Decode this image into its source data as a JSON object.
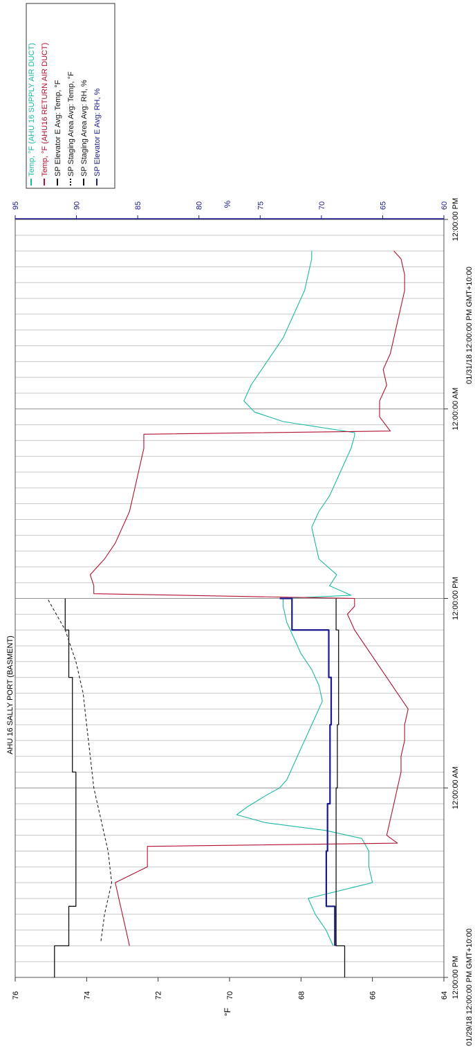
{
  "chart_data": {
    "type": "line",
    "title": "AHU 16 SALLY PORT (BASMENT)",
    "x_label_start": "01/29/18 12:00:00 PM GMT+10:00",
    "x_label_end": "01/31/18 12:00:00 PM GMT+10:00",
    "x_ticks": [
      "12:00:00 PM",
      "12:00:00 AM",
      "12:00:00 PM",
      "12:00:00 AM",
      "12:00:00 PM"
    ],
    "xlim_hours": [
      0,
      48
    ],
    "left_axis": {
      "label": "°F",
      "ylim": [
        64,
        76
      ],
      "ticks": [
        "64",
        "66",
        "68",
        "70",
        "72",
        "74",
        "76"
      ]
    },
    "right_axis": {
      "label": "%",
      "ylim": [
        60,
        95
      ],
      "ticks": [
        "60",
        "65",
        "70",
        "75",
        "80",
        "85",
        "90",
        "95"
      ]
    },
    "legend": {
      "placement": "top-left",
      "items": [
        {
          "label": "Temp, °F (AHU 16 SUPPLY AIR DUCT)",
          "color": "#19b8a0",
          "style": "solid"
        },
        {
          "label": "Temp, °F (AHU16 RETURN AIR DUCT)",
          "color": "#b01030",
          "style": "solid"
        },
        {
          "label": "SP Elevator E Avg: Temp, °F",
          "color": "#111111",
          "style": "solid"
        },
        {
          "label": "SP Staging Area Avg: Temp, °F",
          "color": "#111111",
          "style": "dotted"
        },
        {
          "label": "SP Staging Area Avg: RH, %",
          "color": "#111111",
          "style": "solid"
        },
        {
          "label": "SP Elevator E Avg: RH, %",
          "color": "#1a1a8c",
          "style": "solid"
        }
      ]
    },
    "series": [
      {
        "name": "Temp, °F (AHU 16 SUPPLY AIR DUCT)",
        "axis": "left",
        "color": "#19b8a0",
        "width": 1.1,
        "dash": "",
        "x": [
          2.0,
          3.0,
          4.0,
          5.0,
          6.0,
          7.0,
          8.0,
          8.8,
          9.3,
          9.8,
          10.3,
          10.8,
          11.5,
          12.0,
          12.5,
          13.5,
          14.5,
          15.5,
          16.5,
          17.5,
          18.5,
          19.5,
          20.5,
          21.5,
          22.5,
          23.5,
          24.0,
          24.2,
          24.8,
          25.5,
          26.5,
          27.5,
          28.5,
          29.5,
          30.5,
          31.5,
          32.5,
          33.5,
          34.3,
          34.5,
          35.2,
          35.8,
          36.5,
          37.5,
          38.5,
          39.5,
          40.5,
          41.5,
          42.5,
          43.5,
          44.5,
          45.5,
          46.0
        ],
        "values": [
          67.1,
          67.3,
          67.6,
          67.8,
          66.0,
          66.1,
          66.1,
          66.3,
          67.3,
          69.0,
          69.8,
          69.5,
          69.0,
          68.6,
          68.4,
          68.2,
          68.0,
          67.8,
          67.6,
          67.4,
          67.5,
          67.7,
          68.0,
          68.2,
          68.4,
          68.5,
          68.5,
          66.6,
          67.2,
          67.0,
          67.5,
          67.6,
          67.7,
          67.5,
          67.2,
          67.0,
          66.8,
          66.6,
          66.5,
          66.5,
          68.5,
          69.3,
          69.6,
          69.4,
          69.1,
          68.8,
          68.5,
          68.3,
          68.1,
          67.9,
          67.8,
          67.7,
          67.7
        ]
      },
      {
        "name": "Temp, °F (AHU16 RETURN AIR DUCT)",
        "axis": "left",
        "color": "#b01030",
        "width": 1.1,
        "dash": "",
        "x": [
          2.0,
          3.0,
          4.0,
          5.0,
          6.0,
          7.0,
          8.3,
          8.5,
          9.0,
          10.0,
          11.0,
          12.0,
          13.0,
          14.0,
          15.0,
          16.0,
          17.0,
          18.0,
          19.0,
          20.0,
          21.0,
          22.0,
          23.0,
          23.5,
          24.0,
          24.3,
          24.8,
          25.5,
          26.5,
          27.5,
          28.5,
          29.5,
          30.5,
          31.5,
          32.5,
          33.5,
          34.4,
          34.6,
          35.5,
          36.5,
          37.5,
          38.5,
          39.5,
          40.5,
          41.5,
          42.5,
          43.5,
          44.5,
          45.5,
          46.0
        ],
        "values": [
          72.8,
          72.9,
          73.0,
          73.1,
          73.2,
          72.3,
          72.3,
          65.3,
          65.6,
          65.5,
          65.4,
          65.3,
          65.2,
          65.2,
          65.1,
          65.1,
          65.0,
          65.3,
          65.6,
          65.9,
          66.2,
          66.5,
          66.7,
          66.5,
          66.5,
          73.8,
          73.8,
          73.9,
          73.5,
          73.2,
          73.0,
          72.8,
          72.7,
          72.6,
          72.5,
          72.4,
          72.4,
          65.5,
          65.8,
          65.8,
          65.6,
          65.7,
          65.5,
          65.4,
          65.3,
          65.2,
          65.1,
          65.1,
          65.2,
          65.4
        ]
      },
      {
        "name": "SP Elevator E Avg: Temp, °F",
        "axis": "left",
        "color": "#111111",
        "width": 1.3,
        "dash": "",
        "x": [
          0.0,
          2.0,
          2.0,
          4.5,
          4.5,
          8.0,
          8.0,
          13.0,
          13.0,
          19.0,
          19.0,
          22.0,
          22.0,
          24.0
        ],
        "values": [
          74.9,
          74.9,
          74.5,
          74.5,
          74.3,
          74.3,
          74.3,
          74.3,
          74.4,
          74.4,
          74.5,
          74.5,
          74.6,
          74.6
        ]
      },
      {
        "name": "SP Staging Area Avg: Temp, °F",
        "axis": "left",
        "color": "#222222",
        "width": 1.1,
        "dash": "4,3",
        "x": [
          2.3,
          4.0,
          6.0,
          8.0,
          10.0,
          12.0,
          14.0,
          16.0,
          18.0,
          20.0,
          22.0,
          24.0
        ],
        "values": [
          73.6,
          73.5,
          73.3,
          73.4,
          73.6,
          73.8,
          73.9,
          74.0,
          74.1,
          74.3,
          74.6,
          75.1
        ]
      },
      {
        "name": "SP Staging Area Avg: RH, %",
        "axis": "right",
        "color": "#111111",
        "width": 1.3,
        "dash": "",
        "x": [
          0.0,
          2.0,
          2.0,
          12.0,
          12.0,
          16.0,
          16.0,
          22.0,
          22.0,
          24.0
        ],
        "values": [
          68.1,
          68.1,
          68.8,
          68.8,
          68.7,
          68.7,
          68.6,
          68.6,
          68.8,
          68.8
        ]
      },
      {
        "name": "SP Elevator E Avg: RH, %",
        "axis": "right",
        "color": "#1a1a8c",
        "width": 2.2,
        "dash": "",
        "x": [
          2.0,
          4.5,
          4.5,
          8.0,
          8.0,
          11.0,
          11.0,
          16.0,
          16.0,
          19.0,
          19.0,
          22.0,
          22.0,
          24.0,
          24.0
        ],
        "values": [
          68.9,
          68.9,
          69.6,
          69.6,
          69.5,
          69.5,
          69.3,
          69.3,
          69.2,
          69.2,
          69.4,
          69.4,
          72.4,
          72.4,
          73.4
        ]
      }
    ]
  }
}
